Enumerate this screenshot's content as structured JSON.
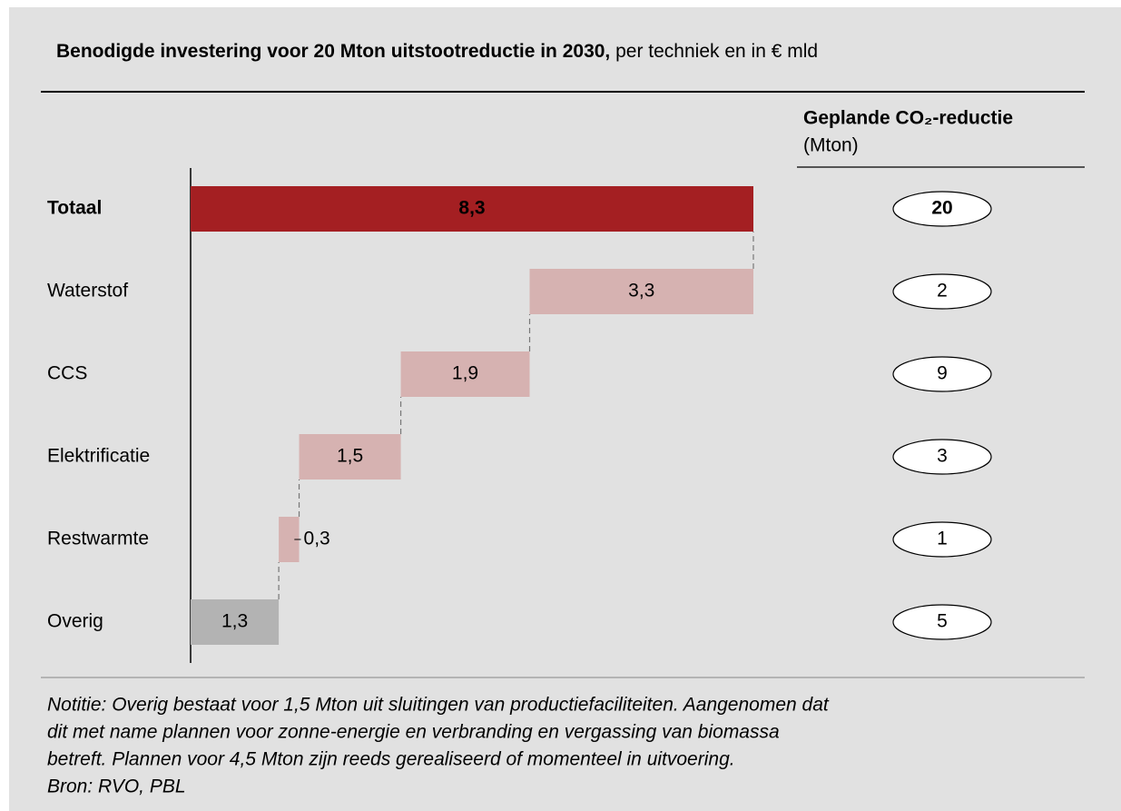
{
  "chart_data": {
    "type": "waterfall",
    "title": "Benodigde investering voor 20 Mton uitstootreductie in 2030,",
    "subtitle": " per techniek en in € mld",
    "categories": [
      "Totaal",
      "Waterstof",
      "CCS",
      "Elektrificatie",
      "Restwarmte",
      "Overig"
    ],
    "values": [
      8.3,
      3.3,
      1.9,
      1.5,
      0.3,
      1.3
    ],
    "value_labels": [
      "8,3",
      "3,3",
      "1,9",
      "1,5",
      "0,3",
      "1,3"
    ],
    "colors": [
      "#a41f22",
      "#d6b2b1",
      "#d6b2b1",
      "#d6b2b1",
      "#d6b2b1",
      "#b3b3b3"
    ],
    "total_color": "#a41f22",
    "side_header": "Geplande CO₂-reductie",
    "side_unit": "(Mton)",
    "side_values": [
      20,
      2,
      9,
      3,
      1,
      5
    ],
    "note": [
      "Notitie: Overig bestaat voor 1,5 Mton uit sluitingen van productiefaciliteiten. Aangenomen dat",
      "dit met name plannen voor zonne-energie en verbranding en vergassing van biomassa",
      "betreft. Plannen voor 4,5 Mton zijn reeds gerealiseerd of momenteel in uitvoering."
    ],
    "source": "Bron: RVO, PBL"
  }
}
